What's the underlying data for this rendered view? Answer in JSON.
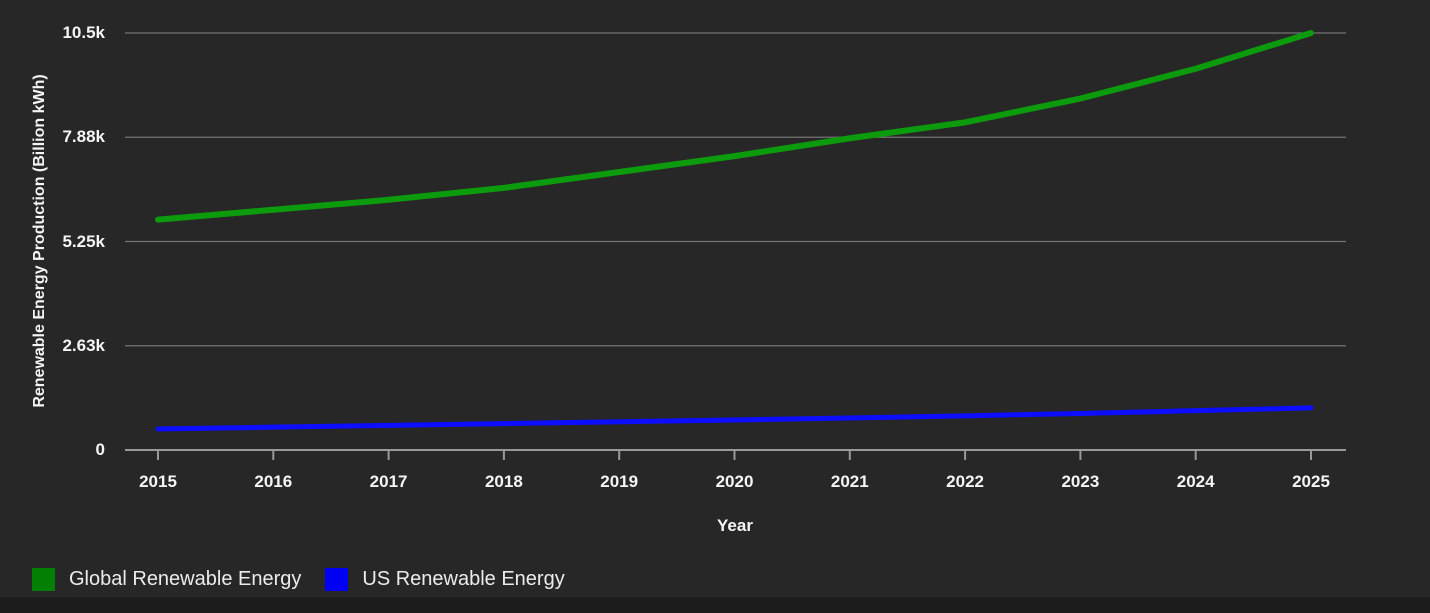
{
  "chart_data": {
    "type": "line",
    "title": "",
    "xlabel": "Year",
    "ylabel": "Renewable Energy Production (Billion kWh)",
    "x": [
      2015,
      2016,
      2017,
      2018,
      2019,
      2020,
      2021,
      2022,
      2023,
      2024,
      2025
    ],
    "x_tick_labels": [
      "2015",
      "2016",
      "2017",
      "2018",
      "2019",
      "2020",
      "2021",
      "2022",
      "2023",
      "2024",
      "2025"
    ],
    "y_ticks": [
      {
        "value": 0,
        "label": "0"
      },
      {
        "value": 2625,
        "label": "2.63k"
      },
      {
        "value": 5250,
        "label": "5.25k"
      },
      {
        "value": 7875,
        "label": "7.88k"
      },
      {
        "value": 10500,
        "label": "10.5k"
      }
    ],
    "ylim": [
      0,
      10500
    ],
    "grid": "horizontal",
    "legend_position": "bottom-left",
    "series": [
      {
        "name": "Global Renewable Energy",
        "color": "#0c9b0c",
        "swatch_color": "#038003",
        "stroke_width": 6,
        "values": [
          5800,
          6050,
          6300,
          6600,
          7000,
          7400,
          7850,
          8250,
          8850,
          9600,
          10500
        ]
      },
      {
        "name": "US Renewable Energy",
        "color": "#0d0dff",
        "swatch_color": "#0000f2",
        "stroke_width": 5,
        "values": [
          530,
          575,
          620,
          665,
          710,
          755,
          805,
          860,
          920,
          990,
          1060
        ]
      }
    ]
  },
  "colors": {
    "background": "#272727",
    "bottom_strip": "#1c1c1c",
    "grid_line": "#747474",
    "axis_line": "#999999",
    "text": "#f5f5f5"
  }
}
